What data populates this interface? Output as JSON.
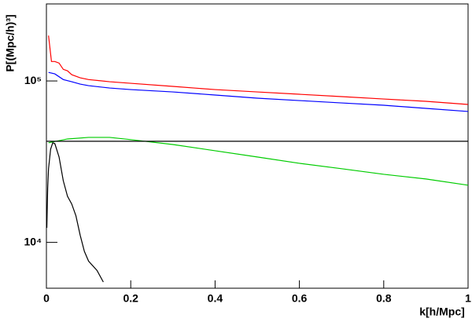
{
  "chart_data": {
    "type": "line",
    "xlabel": "k[h/Mpc]",
    "ylabel": "P[(Mpc/h)³]",
    "log_y": true,
    "xlim": [
      0,
      1
    ],
    "ylim": [
      5200,
      300000
    ],
    "xticks": [
      0,
      0.2,
      0.4,
      0.6,
      0.8,
      1
    ],
    "yticks": [
      {
        "value": 10000,
        "label": "10⁴"
      },
      {
        "value": 100000,
        "label": "10⁵"
      }
    ],
    "series": [
      {
        "color": "#ff0000",
        "x": [
          0.005,
          0.012,
          0.02,
          0.03,
          0.04,
          0.05,
          0.06,
          0.08,
          0.1,
          0.15,
          0.2,
          0.3,
          0.4,
          0.5,
          0.6,
          0.7,
          0.8,
          0.9,
          1.0
        ],
        "values": [
          191000,
          132000,
          132000,
          129000,
          118000,
          115600,
          109400,
          104600,
          102000,
          98900,
          96700,
          92500,
          88400,
          85500,
          82700,
          80000,
          77300,
          74800,
          71500
        ]
      },
      {
        "color": "#0000ff",
        "x": [
          0.005,
          0.02,
          0.04,
          0.06,
          0.08,
          0.1,
          0.15,
          0.2,
          0.3,
          0.4,
          0.5,
          0.6,
          0.7,
          0.8,
          0.9,
          1.0
        ],
        "values": [
          113000,
          110600,
          102000,
          98900,
          95600,
          93500,
          90400,
          88400,
          85500,
          81800,
          78200,
          75600,
          73100,
          70700,
          67600,
          64700
        ]
      },
      {
        "color": "#00cc00",
        "x": [
          0.005,
          0.05,
          0.1,
          0.15,
          0.2,
          0.3,
          0.4,
          0.5,
          0.6,
          0.7,
          0.8,
          0.9,
          1.0
        ],
        "values": [
          41400,
          43700,
          44700,
          44700,
          43300,
          40400,
          36960,
          33800,
          30900,
          28600,
          26400,
          24700,
          22600
        ]
      },
      {
        "color": "#000000",
        "x": [
          0.001,
          0.003,
          0.005,
          0.01,
          0.015,
          0.02,
          0.03,
          0.04,
          0.05,
          0.06,
          0.07,
          0.08,
          0.09,
          0.1,
          0.12,
          0.135
        ],
        "values": [
          12300,
          21600,
          28600,
          37800,
          41400,
          40900,
          33800,
          24100,
          19300,
          17300,
          14600,
          11100,
          8800,
          7650,
          6700,
          5680
        ]
      },
      {
        "color": "#000000",
        "x": [
          0,
          1
        ],
        "values": [
          42300,
          42300
        ]
      }
    ]
  }
}
